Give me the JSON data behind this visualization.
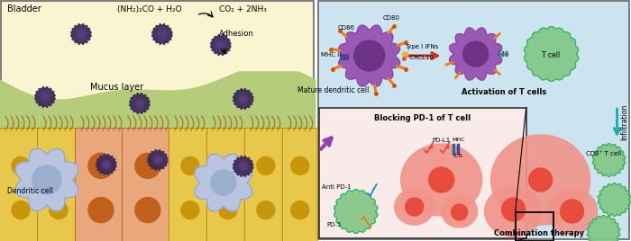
{
  "left_bg_color": "#faf5d0",
  "right_bg_color": "#cce4f0",
  "green_layer_color": "#b5cc7a",
  "cell_yellow_color": "#e8c84a",
  "cell_orange_color": "#e8a87c",
  "cell_nucleus_orange": "#c0601a",
  "cell_nucleus_yellow": "#c8960a",
  "dendritic_cell_color": "#b8c4e0",
  "dendritic_nucleus_color": "#9aaed0",
  "nano_particle_color": "#3a2a5a",
  "nano_inner_color": "#5a3a7a",
  "bladder_text": "Bladder",
  "urea_text": "(NH₂)₂CO + H₂O",
  "product_text": "CO₂ + 2NH₃",
  "adhesion_text": "Adhesion",
  "mucus_layer_text": "Mucus layer",
  "dendritic_cell_text": "Dendritic cell",
  "cd80_text": "CD80",
  "cd86_text": "CD86",
  "mhcii_text": "MHC II",
  "type1ifn_text": "Type I IFNs",
  "cxcl10_text": "● CXCL10",
  "mature_dc_text": "Mature dendritic cell",
  "activation_text": "Activation of T cells",
  "tcell_text": "T cell",
  "infiltration_text": "Infiltration",
  "blocking_text": "Blocking PD-1 of T cell",
  "pdl1_text": "PD-L1",
  "antipd1_text": "Anti PD-1",
  "pd1_text": "PD-1",
  "mhc_text": "MHC",
  "tcr_text": "TCR",
  "cd8_text": "CD8⁺ T cell",
  "combo_text": "Combination therapy",
  "purple_dc_color": "#9b59b6",
  "purple_dc_inner": "#6c3483",
  "tcell_color": "#82c785",
  "tcell_edge": "#27ae60",
  "cancer_cell_color": "#f1948a",
  "cancer_nucleus_color": "#e74c3c",
  "pd_box_color": "#f9ebea",
  "orange_stick_color": "#e67e22",
  "blue_receptor_color": "#2980b9",
  "red_arrow_color": "#c0392b",
  "cyan_arrow_color": "#1aada8"
}
